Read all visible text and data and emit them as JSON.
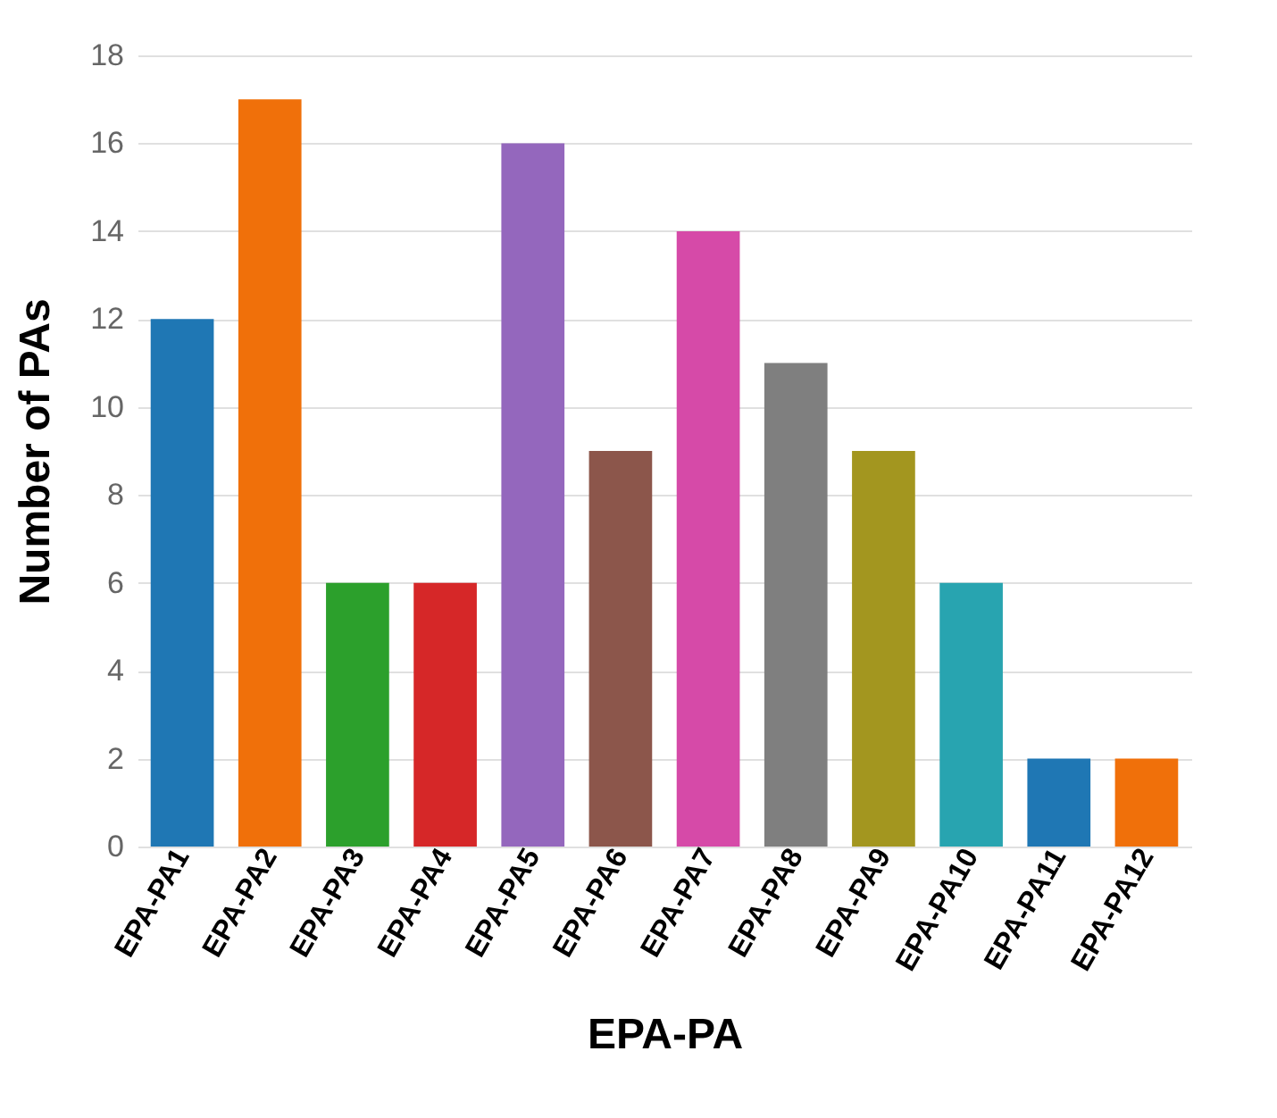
{
  "chart_data": {
    "type": "bar",
    "xlabel": "EPA-PA",
    "ylabel": "Number of PAs",
    "categories": [
      "EPA-PA1",
      "EPA-PA2",
      "EPA-PA3",
      "EPA-PA4",
      "EPA-PA5",
      "EPA-PA6",
      "EPA-PA7",
      "EPA-PA8",
      "EPA-PA9",
      "EPA-PA10",
      "EPA-PA11",
      "EPA-PA12"
    ],
    "values": [
      12,
      17,
      6,
      6,
      16,
      9,
      14,
      11,
      9,
      6,
      2,
      2
    ],
    "colors": [
      "#1f77b4",
      "#f0700a",
      "#2ca02c",
      "#d62728",
      "#9467bd",
      "#8c564b",
      "#d64aa8",
      "#7f7f7f",
      "#a3961f",
      "#28a4b0",
      "#1f77b4",
      "#f0700a"
    ],
    "ylim": [
      0,
      18
    ],
    "yticks": [
      0,
      2,
      4,
      6,
      8,
      10,
      12,
      14,
      16,
      18
    ],
    "grid": "y"
  }
}
